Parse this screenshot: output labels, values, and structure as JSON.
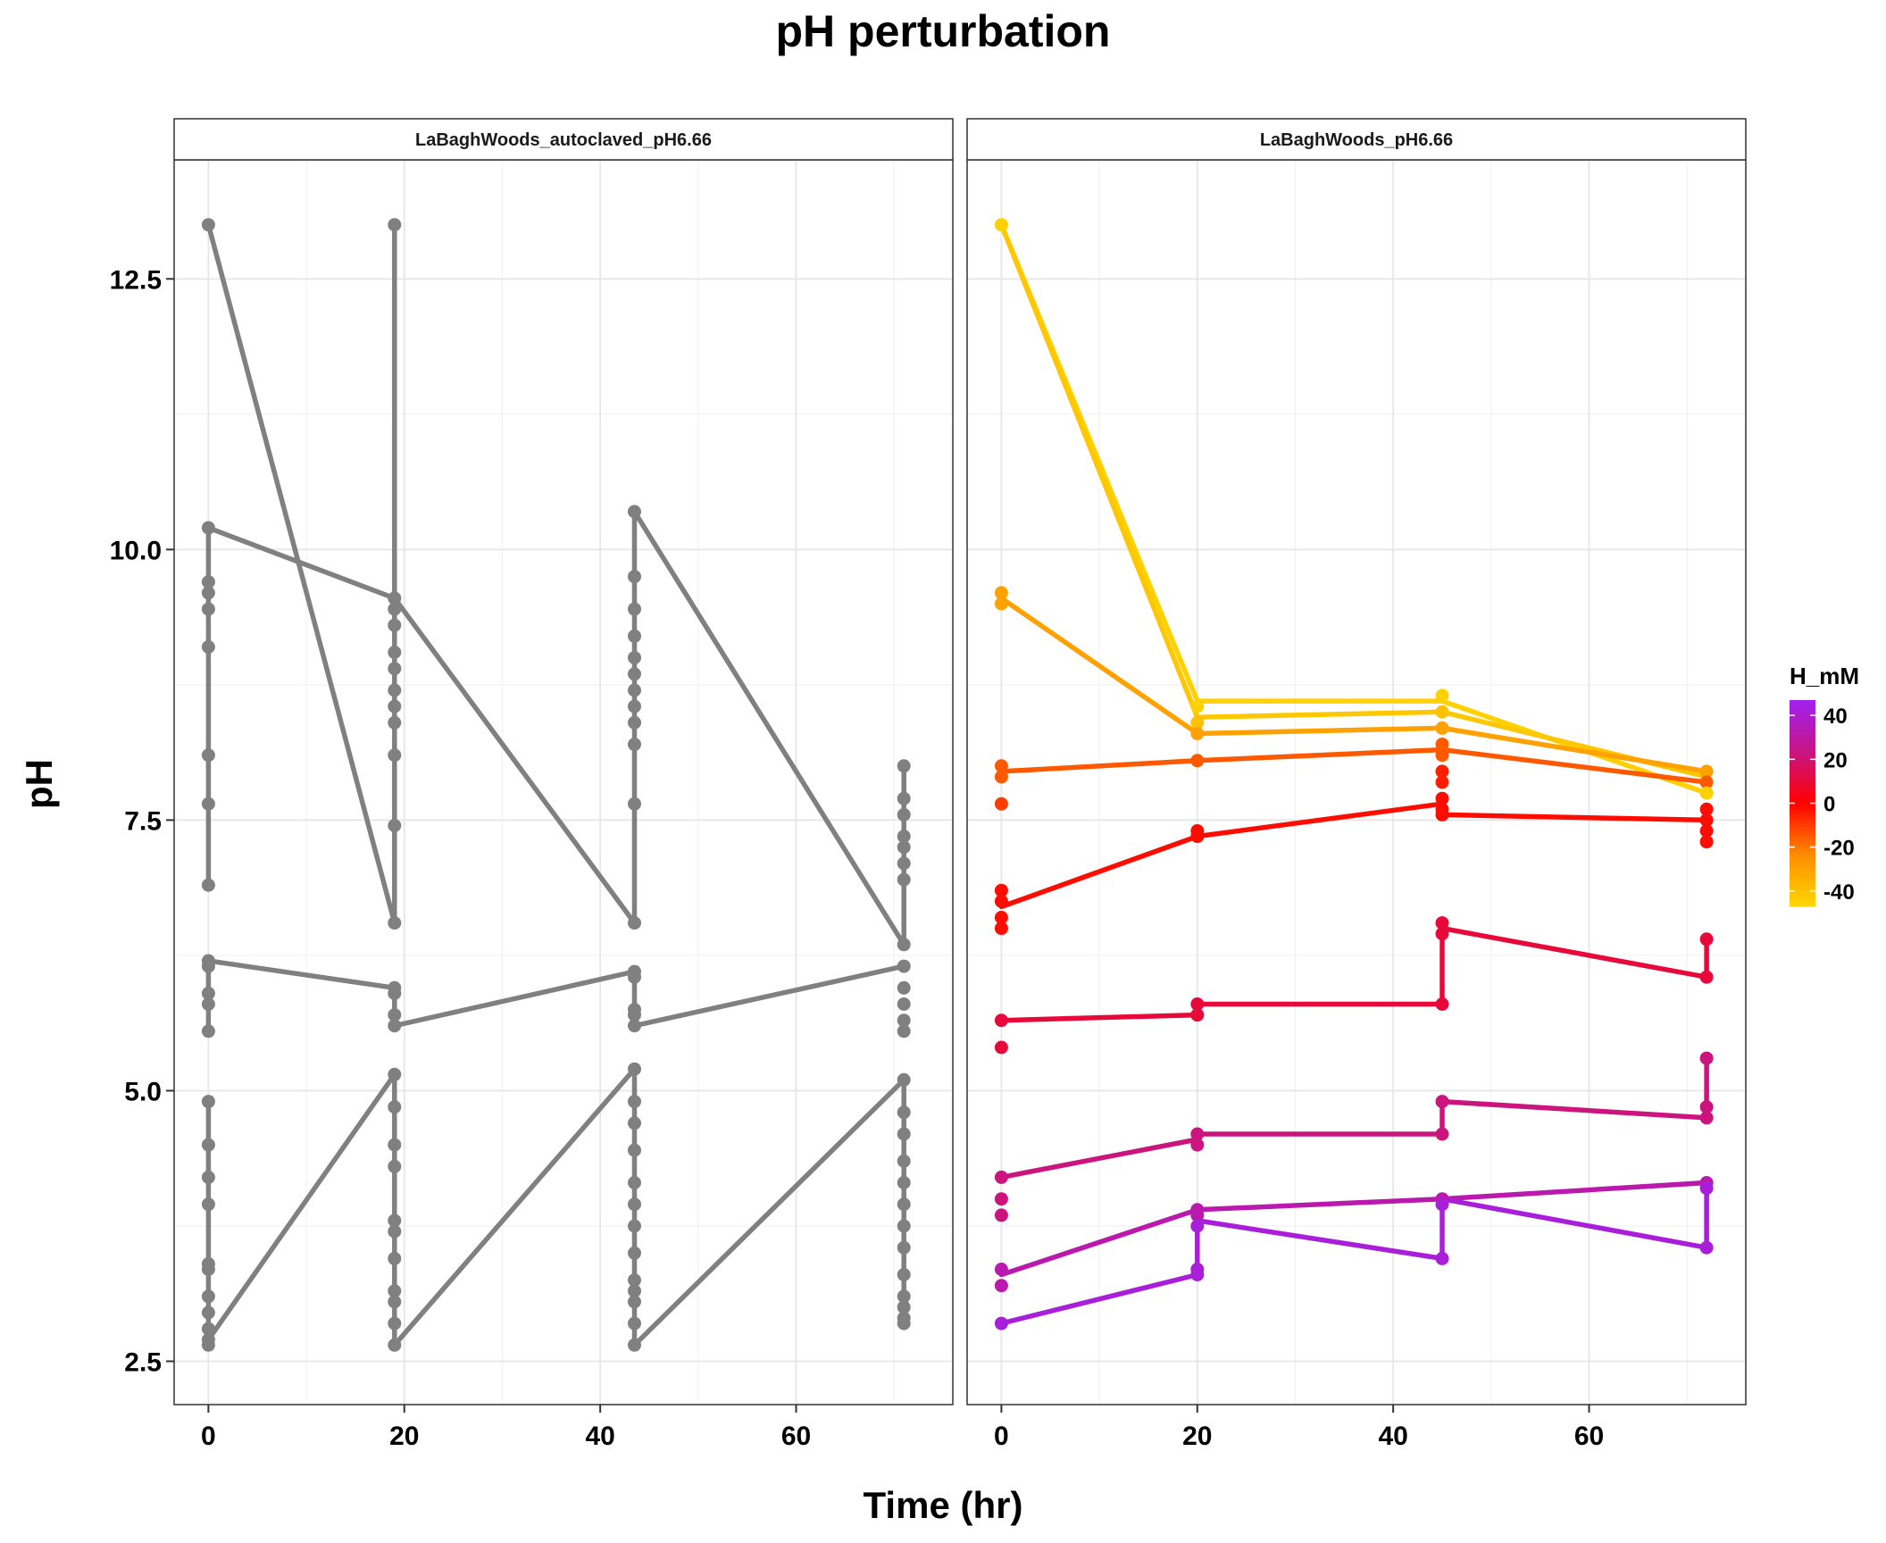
{
  "chart_data": {
    "type": "line",
    "title": "pH perturbation",
    "xlabel": "Time (hr)",
    "ylabel": "pH",
    "xlim": [
      -3.5,
      76
    ],
    "ylim": [
      2.1,
      13.6
    ],
    "xticks": [
      0,
      20,
      40,
      60
    ],
    "yticks": [
      2.5,
      5.0,
      7.5,
      10.0,
      12.5
    ],
    "grid": true,
    "panels": [
      {
        "name": "LaBaghWoods_autoclaved_pH6.66",
        "color_mode": "fixed",
        "color": "#808080",
        "series": [
          {
            "points": [
              [
                0,
                13.0
              ],
              [
                19,
                6.55
              ],
              [
                19,
                13.0
              ]
            ]
          },
          {
            "points": [
              [
                0,
                6.9
              ],
              [
                0,
                10.2
              ],
              [
                19,
                9.55
              ],
              [
                43.5,
                6.55
              ],
              [
                43.5,
                10.35
              ],
              [
                71,
                6.35
              ],
              [
                71,
                8.0
              ]
            ]
          },
          {
            "points": [
              [
                0,
                5.55
              ],
              [
                0,
                6.2
              ],
              [
                19,
                5.95
              ],
              [
                19,
                5.6
              ],
              [
                43.5,
                6.1
              ],
              [
                43.5,
                5.6
              ],
              [
                71,
                6.15
              ]
            ]
          },
          {
            "points": [
              [
                0,
                4.9
              ],
              [
                0,
                2.7
              ],
              [
                19,
                5.15
              ],
              [
                19,
                2.65
              ],
              [
                43.5,
                5.2
              ],
              [
                43.5,
                2.65
              ],
              [
                71,
                5.1
              ],
              [
                71,
                2.85
              ]
            ]
          }
        ],
        "points": [
          [
            0,
            13.0
          ],
          [
            0,
            10.2
          ],
          [
            0,
            9.7
          ],
          [
            0,
            9.6
          ],
          [
            0,
            9.45
          ],
          [
            0,
            9.1
          ],
          [
            0,
            8.1
          ],
          [
            0,
            7.65
          ],
          [
            0,
            6.9
          ],
          [
            0,
            6.2
          ],
          [
            0,
            6.15
          ],
          [
            0,
            5.9
          ],
          [
            0,
            5.8
          ],
          [
            0,
            5.55
          ],
          [
            0,
            4.9
          ],
          [
            0,
            4.5
          ],
          [
            0,
            4.2
          ],
          [
            0,
            3.95
          ],
          [
            0,
            3.4
          ],
          [
            0,
            3.35
          ],
          [
            0,
            3.1
          ],
          [
            0,
            2.95
          ],
          [
            0,
            2.8
          ],
          [
            0,
            2.7
          ],
          [
            0,
            2.65
          ],
          [
            19,
            13.0
          ],
          [
            19,
            9.55
          ],
          [
            19,
            9.45
          ],
          [
            19,
            9.3
          ],
          [
            19,
            9.05
          ],
          [
            19,
            8.9
          ],
          [
            19,
            8.7
          ],
          [
            19,
            8.55
          ],
          [
            19,
            8.4
          ],
          [
            19,
            8.1
          ],
          [
            19,
            7.45
          ],
          [
            19,
            6.55
          ],
          [
            19,
            5.95
          ],
          [
            19,
            5.9
          ],
          [
            19,
            5.7
          ],
          [
            19,
            5.6
          ],
          [
            19,
            5.15
          ],
          [
            19,
            4.85
          ],
          [
            19,
            4.5
          ],
          [
            19,
            4.3
          ],
          [
            19,
            3.8
          ],
          [
            19,
            3.7
          ],
          [
            19,
            3.45
          ],
          [
            19,
            3.15
          ],
          [
            19,
            3.05
          ],
          [
            19,
            2.85
          ],
          [
            19,
            2.65
          ],
          [
            43.5,
            10.35
          ],
          [
            43.5,
            9.75
          ],
          [
            43.5,
            9.45
          ],
          [
            43.5,
            9.2
          ],
          [
            43.5,
            9.0
          ],
          [
            43.5,
            8.85
          ],
          [
            43.5,
            8.7
          ],
          [
            43.5,
            8.55
          ],
          [
            43.5,
            8.4
          ],
          [
            43.5,
            8.2
          ],
          [
            43.5,
            7.65
          ],
          [
            43.5,
            6.55
          ],
          [
            43.5,
            6.1
          ],
          [
            43.5,
            6.05
          ],
          [
            43.5,
            5.75
          ],
          [
            43.5,
            5.7
          ],
          [
            43.5,
            5.6
          ],
          [
            43.5,
            5.2
          ],
          [
            43.5,
            4.9
          ],
          [
            43.5,
            4.7
          ],
          [
            43.5,
            4.45
          ],
          [
            43.5,
            4.15
          ],
          [
            43.5,
            3.95
          ],
          [
            43.5,
            3.75
          ],
          [
            43.5,
            3.5
          ],
          [
            43.5,
            3.25
          ],
          [
            43.5,
            3.15
          ],
          [
            43.5,
            3.05
          ],
          [
            43.5,
            2.85
          ],
          [
            43.5,
            2.65
          ],
          [
            71,
            8.0
          ],
          [
            71,
            7.7
          ],
          [
            71,
            7.55
          ],
          [
            71,
            7.35
          ],
          [
            71,
            7.25
          ],
          [
            71,
            7.1
          ],
          [
            71,
            6.95
          ],
          [
            71,
            6.35
          ],
          [
            71,
            6.15
          ],
          [
            71,
            5.95
          ],
          [
            71,
            5.8
          ],
          [
            71,
            5.65
          ],
          [
            71,
            5.55
          ],
          [
            71,
            5.1
          ],
          [
            71,
            4.8
          ],
          [
            71,
            4.6
          ],
          [
            71,
            4.35
          ],
          [
            71,
            4.15
          ],
          [
            71,
            3.95
          ],
          [
            71,
            3.75
          ],
          [
            71,
            3.55
          ],
          [
            71,
            3.3
          ],
          [
            71,
            3.1
          ],
          [
            71,
            3.0
          ],
          [
            71,
            2.9
          ],
          [
            71,
            2.85
          ]
        ]
      },
      {
        "name": "LaBaghWoods_pH6.66",
        "color_mode": "H_mM",
        "series": [
          {
            "h": -45,
            "points": [
              [
                0,
                13.0
              ],
              [
                20,
                8.6
              ],
              [
                45,
                8.6
              ],
              [
                72,
                7.75
              ]
            ]
          },
          {
            "h": -42,
            "points": [
              [
                0,
                13.0
              ],
              [
                20,
                8.45
              ],
              [
                45,
                8.5
              ],
              [
                72,
                7.9
              ]
            ]
          },
          {
            "h": -30,
            "points": [
              [
                0,
                9.55
              ],
              [
                20,
                8.3
              ],
              [
                45,
                8.35
              ],
              [
                72,
                7.95
              ]
            ]
          },
          {
            "h": -15,
            "points": [
              [
                0,
                7.95
              ],
              [
                20,
                8.05
              ],
              [
                45,
                8.15
              ],
              [
                72,
                7.85
              ]
            ]
          },
          {
            "h": -2,
            "points": [
              [
                0,
                6.7
              ],
              [
                20,
                7.35
              ],
              [
                45,
                7.65
              ],
              [
                45,
                7.55
              ],
              [
                72,
                7.5
              ]
            ]
          },
          {
            "h": 10,
            "points": [
              [
                0,
                5.65
              ],
              [
                20,
                5.7
              ],
              [
                20,
                5.8
              ],
              [
                45,
                5.8
              ],
              [
                45,
                6.5
              ],
              [
                72,
                6.05
              ],
              [
                72,
                6.4
              ]
            ]
          },
          {
            "h": 22,
            "points": [
              [
                0,
                4.2
              ],
              [
                20,
                4.55
              ],
              [
                20,
                4.6
              ],
              [
                45,
                4.6
              ],
              [
                45,
                4.9
              ],
              [
                72,
                4.75
              ],
              [
                72,
                5.3
              ]
            ]
          },
          {
            "h": 32,
            "points": [
              [
                0,
                3.3
              ],
              [
                20,
                3.9
              ],
              [
                45,
                4.0
              ],
              [
                72,
                4.15
              ]
            ]
          },
          {
            "h": 42,
            "points": [
              [
                0,
                2.85
              ],
              [
                20,
                3.3
              ],
              [
                20,
                3.8
              ],
              [
                45,
                3.45
              ],
              [
                45,
                4.0
              ],
              [
                72,
                3.55
              ],
              [
                72,
                4.15
              ]
            ]
          }
        ],
        "points": [
          {
            "x": 0,
            "y": 13.0,
            "h": -45
          },
          {
            "x": 0,
            "y": 9.6,
            "h": -30
          },
          {
            "x": 0,
            "y": 9.5,
            "h": -30
          },
          {
            "x": 0,
            "y": 8.0,
            "h": -15
          },
          {
            "x": 0,
            "y": 7.9,
            "h": -15
          },
          {
            "x": 0,
            "y": 7.65,
            "h": -10
          },
          {
            "x": 0,
            "y": 6.85,
            "h": -2
          },
          {
            "x": 0,
            "y": 6.75,
            "h": -2
          },
          {
            "x": 0,
            "y": 6.6,
            "h": -2
          },
          {
            "x": 0,
            "y": 6.5,
            "h": -2
          },
          {
            "x": 0,
            "y": 5.65,
            "h": 10
          },
          {
            "x": 0,
            "y": 5.4,
            "h": 10
          },
          {
            "x": 0,
            "y": 4.2,
            "h": 22
          },
          {
            "x": 0,
            "y": 4.0,
            "h": 22
          },
          {
            "x": 0,
            "y": 3.85,
            "h": 22
          },
          {
            "x": 0,
            "y": 3.35,
            "h": 32
          },
          {
            "x": 0,
            "y": 3.2,
            "h": 32
          },
          {
            "x": 0,
            "y": 2.85,
            "h": 42
          },
          {
            "x": 20,
            "y": 8.55,
            "h": -45
          },
          {
            "x": 20,
            "y": 8.4,
            "h": -40
          },
          {
            "x": 20,
            "y": 8.3,
            "h": -30
          },
          {
            "x": 20,
            "y": 8.05,
            "h": -15
          },
          {
            "x": 20,
            "y": 7.4,
            "h": -2
          },
          {
            "x": 20,
            "y": 7.35,
            "h": -2
          },
          {
            "x": 20,
            "y": 5.8,
            "h": 10
          },
          {
            "x": 20,
            "y": 5.7,
            "h": 10
          },
          {
            "x": 20,
            "y": 4.6,
            "h": 22
          },
          {
            "x": 20,
            "y": 4.5,
            "h": 22
          },
          {
            "x": 20,
            "y": 3.9,
            "h": 32
          },
          {
            "x": 20,
            "y": 3.85,
            "h": 32
          },
          {
            "x": 20,
            "y": 3.75,
            "h": 42
          },
          {
            "x": 20,
            "y": 3.35,
            "h": 42
          },
          {
            "x": 20,
            "y": 3.3,
            "h": 42
          },
          {
            "x": 45,
            "y": 8.65,
            "h": -45
          },
          {
            "x": 45,
            "y": 8.5,
            "h": -40
          },
          {
            "x": 45,
            "y": 8.35,
            "h": -30
          },
          {
            "x": 45,
            "y": 8.2,
            "h": -15
          },
          {
            "x": 45,
            "y": 8.1,
            "h": -15
          },
          {
            "x": 45,
            "y": 7.95,
            "h": -5
          },
          {
            "x": 45,
            "y": 7.85,
            "h": -5
          },
          {
            "x": 45,
            "y": 7.7,
            "h": -2
          },
          {
            "x": 45,
            "y": 7.6,
            "h": -2
          },
          {
            "x": 45,
            "y": 7.55,
            "h": -2
          },
          {
            "x": 45,
            "y": 6.55,
            "h": 10
          },
          {
            "x": 45,
            "y": 6.45,
            "h": 10
          },
          {
            "x": 45,
            "y": 5.8,
            "h": 10
          },
          {
            "x": 45,
            "y": 4.9,
            "h": 22
          },
          {
            "x": 45,
            "y": 4.6,
            "h": 22
          },
          {
            "x": 45,
            "y": 4.0,
            "h": 32
          },
          {
            "x": 45,
            "y": 3.95,
            "h": 42
          },
          {
            "x": 45,
            "y": 3.45,
            "h": 42
          },
          {
            "x": 72,
            "y": 7.95,
            "h": -30
          },
          {
            "x": 72,
            "y": 7.85,
            "h": -15
          },
          {
            "x": 72,
            "y": 7.75,
            "h": -45
          },
          {
            "x": 72,
            "y": 7.6,
            "h": -2
          },
          {
            "x": 72,
            "y": 7.5,
            "h": -2
          },
          {
            "x": 72,
            "y": 7.4,
            "h": -2
          },
          {
            "x": 72,
            "y": 7.3,
            "h": -2
          },
          {
            "x": 72,
            "y": 6.4,
            "h": 10
          },
          {
            "x": 72,
            "y": 6.05,
            "h": 10
          },
          {
            "x": 72,
            "y": 5.3,
            "h": 22
          },
          {
            "x": 72,
            "y": 4.85,
            "h": 22
          },
          {
            "x": 72,
            "y": 4.75,
            "h": 22
          },
          {
            "x": 72,
            "y": 4.15,
            "h": 32
          },
          {
            "x": 72,
            "y": 4.1,
            "h": 42
          },
          {
            "x": 72,
            "y": 3.55,
            "h": 42
          }
        ]
      }
    ],
    "legend": {
      "title": "H_mM",
      "placement": "right",
      "type": "colorbar",
      "range": [
        -47,
        47
      ],
      "breaks": [
        40,
        20,
        0,
        -20,
        -40
      ],
      "colors": [
        "#ffd700",
        "#ff8c00",
        "#ff0000",
        "#c71585",
        "#a020f0"
      ]
    }
  }
}
